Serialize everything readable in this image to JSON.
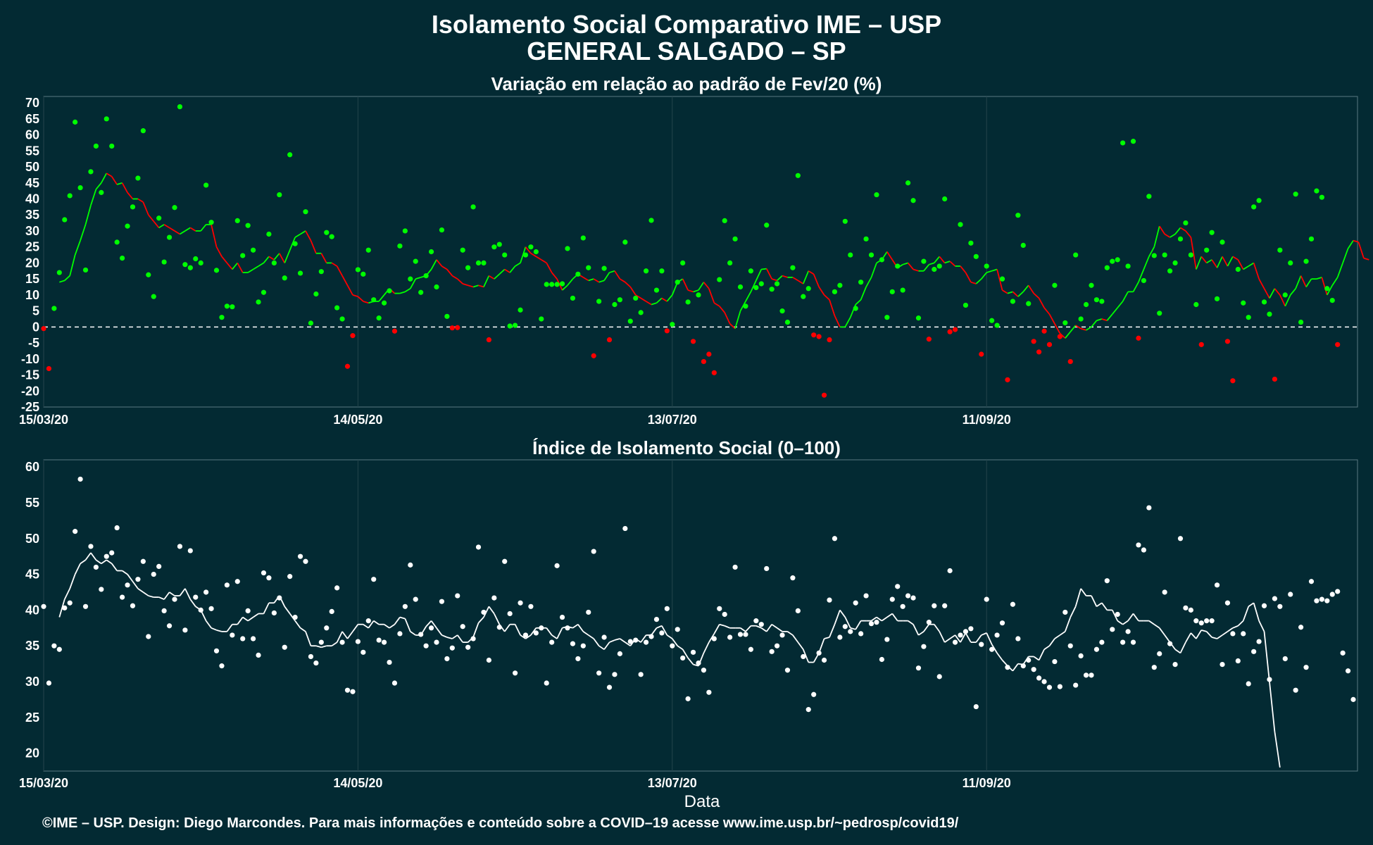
{
  "header": {
    "title": "Isolamento Social Comparativo IME – USP",
    "subtitle": "GENERAL SALGADO – SP"
  },
  "footer": {
    "caption": "©IME – USP. Design: Diego Marcondes. Para mais informações e conteúdo sobre a COVID–19 acesse www.ime.usp.br/~pedrosp/covid19/"
  },
  "colors": {
    "background": "#032a33",
    "panel": "#032a33",
    "positive": "#00ff00",
    "negative": "#ff0000",
    "index": "#ffffff",
    "grid": "#24444c"
  },
  "chart_data": [
    {
      "type": "scatter",
      "title": "Variação em relação ao padrão de Fev/20 (%)",
      "xlabel": "",
      "ylabel": "",
      "x_start": "15/03/20",
      "x_tick_labels": [
        "15/03/20",
        "14/05/20",
        "13/07/20",
        "11/09/20"
      ],
      "x_tick_day_offsets": [
        0,
        60,
        120,
        180
      ],
      "ylim": [
        -25,
        72
      ],
      "y_ticks": [
        70,
        65,
        60,
        55,
        50,
        45,
        40,
        35,
        30,
        25,
        20,
        15,
        10,
        5,
        0,
        -5,
        -10,
        -15,
        -20,
        -25
      ],
      "reference_line": 0,
      "series": [
        {
          "role": "daily points",
          "values": [
            -0.5,
            -13,
            5.8,
            17,
            33.5,
            41,
            64,
            43.5,
            17.8,
            48.5,
            56.5,
            42,
            65,
            56.5,
            26.5,
            21.5,
            31.5,
            37.5,
            46.5,
            61.3,
            16.3,
            9.5,
            34,
            20.3,
            28,
            37.3,
            68.8,
            19.5,
            18.5,
            21.3,
            20,
            44.3,
            32.7,
            17.7,
            3,
            6.5,
            6.3,
            33.2,
            22.3,
            31.7,
            24,
            7.8,
            10.8,
            29,
            20,
            41.3,
            15.3,
            53.8,
            26,
            16.8,
            36,
            1.2,
            10.3,
            17.3,
            29.5,
            28.2,
            6,
            2.5,
            -12.3,
            -2.7,
            17.9,
            16.5,
            24,
            8.5,
            2.8,
            7.5,
            11.3,
            -1.3,
            25.3,
            30,
            15,
            20.5,
            10.8,
            16,
            23.5,
            12.5,
            30.3,
            3.3,
            -0.3,
            -0.2,
            24,
            18.5,
            37.5,
            20,
            20,
            -4,
            25,
            25.8,
            22.5,
            0.3,
            0.5,
            5.3,
            22.5,
            25,
            23.5,
            2.5,
            13.3,
            13.3,
            13.3,
            13.5,
            24.5,
            9,
            16.5,
            27.8,
            18.5,
            -9,
            8,
            18.3,
            -4,
            7,
            8.5,
            26.5,
            1.8,
            9,
            4.5,
            17.5,
            33.3,
            11.5,
            17.5,
            -1.2,
            0.8,
            14,
            20,
            7.8,
            -4.5,
            10,
            -10.8,
            -8.5,
            -14.3,
            14.8,
            33.2,
            20,
            27.5,
            12.5,
            6.5,
            17.5,
            12.3,
            13.5,
            31.8,
            11.8,
            13.5,
            5,
            1.5,
            18.5,
            47.3,
            9.5,
            12,
            -2.5,
            -3,
            -21.3,
            -4,
            11,
            13,
            33,
            22.5,
            5.8,
            14,
            27.5,
            22.5,
            41.3,
            21,
            3,
            11,
            19,
            11.5,
            45,
            39.5,
            2.8,
            20.5,
            -3.8,
            18,
            19,
            40,
            -1.5,
            -0.8,
            32,
            6.8,
            26.2,
            22,
            -8.5,
            19,
            2,
            0.5,
            15,
            -16.5,
            8,
            34.9,
            25.5,
            7.3,
            -4.5,
            -7.8,
            -1.3,
            -5.5,
            13,
            -3,
            1.3,
            -10.8,
            22.5,
            2.5,
            7,
            13,
            8.5,
            8,
            18.5,
            20.5,
            21,
            57.5,
            19,
            58,
            -3.5,
            14.5,
            40.8,
            22.3,
            4.3,
            22.5,
            17.5,
            20,
            27.5,
            32.5,
            22.5,
            7,
            -5.5,
            24,
            29.5,
            8.8,
            26.5,
            -4.5,
            -16.8,
            18,
            7.5,
            3,
            37.5,
            39.5,
            7.8,
            4,
            -16.3,
            24,
            10,
            20,
            41.5,
            1.5,
            20.5,
            27.5,
            42.5,
            40.5,
            12,
            8.3,
            -5.5
          ]
        },
        {
          "role": "7-day moving average",
          "start_offset": 3,
          "values": [
            14,
            14.5,
            16,
            22.5,
            27,
            32,
            38,
            43,
            45,
            48,
            47,
            44.5,
            45,
            42,
            40,
            40,
            39,
            35,
            33,
            31,
            32,
            31,
            30,
            29,
            30,
            31,
            30,
            30,
            32,
            32,
            25,
            22,
            20,
            18,
            20,
            17,
            17,
            18,
            19,
            20,
            22,
            21,
            23,
            20,
            24,
            28,
            29,
            30,
            27,
            23,
            23,
            20,
            20,
            19,
            16,
            13,
            10,
            9.5,
            8,
            7.5,
            8,
            8,
            10,
            12,
            10.5,
            10.5,
            11,
            12,
            15,
            15.5,
            16,
            18,
            21,
            19,
            18,
            16,
            15,
            13.5,
            13,
            12.5,
            13,
            12.5,
            16,
            15,
            16.5,
            18,
            17,
            19,
            20,
            25,
            23,
            22,
            21,
            20,
            17,
            15,
            11.5,
            13,
            15,
            16.5,
            15.5,
            14.5,
            15,
            14,
            14.5,
            17,
            17.5,
            15,
            14,
            12.5,
            10,
            9,
            8,
            7,
            7.5,
            9,
            8,
            10,
            14,
            15,
            11.5,
            11,
            11.5,
            14,
            12,
            7.5,
            6.5,
            4.5,
            1,
            -0.5,
            5,
            8,
            11,
            14.5,
            18,
            18.2,
            15,
            14.5,
            16,
            15.5,
            15.5,
            14.5,
            13.5,
            17.5,
            16.5,
            12.5,
            10,
            8.5,
            3.5,
            0,
            0,
            3,
            7,
            8.5,
            12.5,
            15.5,
            20,
            21,
            23.5,
            21,
            18.5,
            19.5,
            20,
            18,
            17.5,
            17.5,
            19.5,
            20,
            22,
            20,
            20.5,
            19,
            19,
            17,
            14,
            13.5,
            15,
            17,
            17.5,
            18,
            11.5,
            10.5,
            11,
            9.5,
            11,
            13,
            10.5,
            9,
            6,
            4,
            1,
            -2,
            -3.5,
            -1.5,
            0.5,
            -0.5,
            -1,
            0,
            2,
            2.5,
            2,
            4,
            6,
            8,
            11,
            11,
            14,
            18,
            22,
            25,
            31.5,
            29,
            28,
            29,
            31,
            30,
            28,
            18,
            22,
            20,
            21,
            18.5,
            22,
            19,
            22,
            21,
            18,
            19,
            20,
            15,
            12,
            9,
            12,
            10,
            6.5,
            10,
            12,
            16,
            12.5,
            15,
            15,
            15.5,
            10,
            13,
            15.5,
            20,
            24.5,
            27,
            26.5,
            21.5,
            21
          ]
        }
      ]
    },
    {
      "type": "scatter",
      "title": "Índice de Isolamento Social (0–100)",
      "xlabel": "Data",
      "ylabel": "",
      "x_start": "15/03/20",
      "x_tick_labels": [
        "15/03/20",
        "14/05/20",
        "13/07/20",
        "11/09/20"
      ],
      "x_tick_day_offsets": [
        0,
        60,
        120,
        180
      ],
      "ylim": [
        17.5,
        61
      ],
      "y_ticks": [
        60,
        55,
        50,
        45,
        40,
        35,
        30,
        25,
        20
      ],
      "series": [
        {
          "role": "daily points",
          "values": [
            40.5,
            29.8,
            35,
            34.5,
            40.3,
            41,
            51,
            58.3,
            40.5,
            48.9,
            46,
            42.9,
            47.5,
            48,
            51.5,
            41.8,
            43.5,
            40.6,
            44.3,
            46.8,
            36.3,
            45,
            46.1,
            39.9,
            37.8,
            41.5,
            48.9,
            37.2,
            48.3,
            41.8,
            40,
            42.5,
            40.2,
            34.3,
            32.2,
            43.5,
            36.5,
            44,
            36,
            39.9,
            36,
            33.7,
            45.2,
            44.5,
            39.6,
            41.7,
            34.8,
            44.7,
            39,
            47.5,
            46.8,
            33.5,
            32.6,
            35.5,
            37.5,
            39.8,
            43.1,
            35.5,
            28.8,
            28.6,
            35.6,
            34.1,
            38.5,
            44.3,
            35.8,
            35.5,
            32.7,
            29.8,
            36.7,
            40.5,
            46.3,
            41.5,
            36.6,
            35,
            37.5,
            35.5,
            41.2,
            33.2,
            34.7,
            42,
            37.7,
            34.8,
            36,
            48.8,
            39.7,
            33,
            41.7,
            37.6,
            46.8,
            39.5,
            31.2,
            41,
            36.5,
            40.5,
            36.8,
            37.5,
            29.8,
            35.5,
            46.2,
            39,
            37.5,
            35.3,
            33.2,
            35,
            39.7,
            48.2,
            31.2,
            36.2,
            29.2,
            31,
            33.9,
            51.4,
            35.6,
            35.8,
            31,
            35.5,
            36.3,
            38.7,
            36.8,
            40.2,
            35,
            37.3,
            33.3,
            27.6,
            34.1,
            32.6,
            31.6,
            28.5,
            36,
            40.2,
            39.4,
            36.2,
            46,
            36.6,
            36.6,
            34.5,
            38.5,
            38,
            45.8,
            34.2,
            35,
            36.5,
            31.6,
            44.5,
            39.9,
            33.5,
            26.1,
            28.2,
            34,
            33,
            41.4,
            50,
            36.2,
            37.7,
            37,
            41,
            36.7,
            42,
            38.1,
            38.3,
            33.1,
            35.9,
            41.5,
            43.3,
            40.5,
            42,
            41.7,
            31.9,
            34.9,
            38.3,
            40.6,
            30.7,
            40.6,
            45.5,
            35.5,
            36.5,
            37,
            37.4,
            26.5,
            35.2,
            41.5,
            34.5,
            36.5,
            38.2,
            32,
            40.8,
            36,
            32.2,
            33,
            31.7,
            30.5,
            30,
            29.2,
            32.8,
            29.3,
            39.7,
            35,
            29.5,
            33.6,
            30.9,
            30.9,
            34.5,
            35.5,
            44.1,
            37.3,
            39.4,
            35.5,
            37,
            35.5,
            49.1,
            48.4,
            54.3,
            32,
            33.9,
            42.5,
            35.3,
            32.4,
            50,
            40.3,
            40,
            38.5,
            38.2,
            38.5,
            38.5,
            43.5,
            32.4,
            41,
            36.7,
            32.9,
            36.7,
            29.7,
            34.2,
            35.6,
            40.6,
            30.3,
            41.6,
            40.5,
            33.2,
            42.2,
            28.8,
            37.6,
            32,
            44,
            41.3,
            41.5,
            41.3,
            42.2,
            42.6,
            34,
            31.5,
            27.5
          ]
        },
        {
          "role": "7-day moving average",
          "start_offset": 3,
          "values": [
            39,
            41.5,
            43,
            45,
            46.5,
            47,
            48,
            47,
            46.5,
            47,
            46.5,
            45.5,
            45.5,
            45,
            44,
            43,
            42.5,
            42,
            41.8,
            41.8,
            41.5,
            42.5,
            42,
            42,
            43,
            41.5,
            40.5,
            40,
            38.5,
            37.5,
            37.2,
            37,
            37,
            38,
            38,
            39,
            38.5,
            39,
            39.5,
            39.5,
            41,
            41,
            42,
            40.5,
            39.5,
            38.5,
            37.5,
            37,
            35,
            35,
            34.8,
            35,
            35,
            35.5,
            37,
            36,
            37,
            38,
            38,
            37.5,
            38.5,
            38,
            38,
            37.5,
            38,
            39,
            38.8,
            37,
            36.5,
            36.5,
            37.7,
            38.5,
            37.5,
            36.5,
            36.2,
            36,
            36.5,
            35.5,
            35.5,
            36.2,
            38.2,
            39,
            40.5,
            39.5,
            38,
            37,
            38,
            38,
            36.5,
            36,
            36.5,
            37.5,
            37.5,
            37.5,
            36.5,
            36,
            37.5,
            37.7,
            37.5,
            38,
            37,
            36.5,
            36,
            35,
            34.5,
            35.5,
            35.8,
            36,
            35.5,
            35,
            36,
            35.5,
            36.5,
            36.5,
            37.5,
            37.8,
            36.5,
            36,
            35,
            34.5,
            33.3,
            32.4,
            32.2,
            34,
            35.5,
            36.7,
            38,
            37.8,
            37.5,
            37.5,
            37.5,
            37,
            37.8,
            37.8,
            37.5,
            37,
            38,
            37.5,
            37,
            37,
            36.5,
            35.5,
            34.5,
            32.7,
            32.7,
            34,
            36,
            36.2,
            38,
            40,
            39,
            37.5,
            37.3,
            38.5,
            38.5,
            38.5,
            39,
            38.5,
            39,
            39.5,
            38.5,
            38.5,
            38.5,
            38,
            36.5,
            37,
            38,
            38,
            37,
            35.5,
            36,
            36.5,
            35.5,
            36.8,
            35.5,
            35.5,
            36.5,
            36.8,
            35.2,
            34,
            33,
            32.2,
            31.5,
            32.5,
            32.4,
            33.5,
            33.5,
            33,
            34.5,
            35,
            36,
            36.5,
            37,
            39,
            40.5,
            43,
            42,
            42,
            40.5,
            41,
            40,
            40,
            38.5,
            38,
            38.5,
            39.5,
            38.5,
            38.5,
            38.5,
            38,
            37.5,
            36.5,
            35.5,
            34.5,
            34,
            35.5,
            36.8,
            36,
            37.2,
            37,
            36.2,
            36,
            36.5,
            37,
            37.5,
            37.8,
            38.5,
            40.5,
            41,
            38.5,
            37,
            30,
            23,
            18
          ]
        }
      ]
    }
  ]
}
